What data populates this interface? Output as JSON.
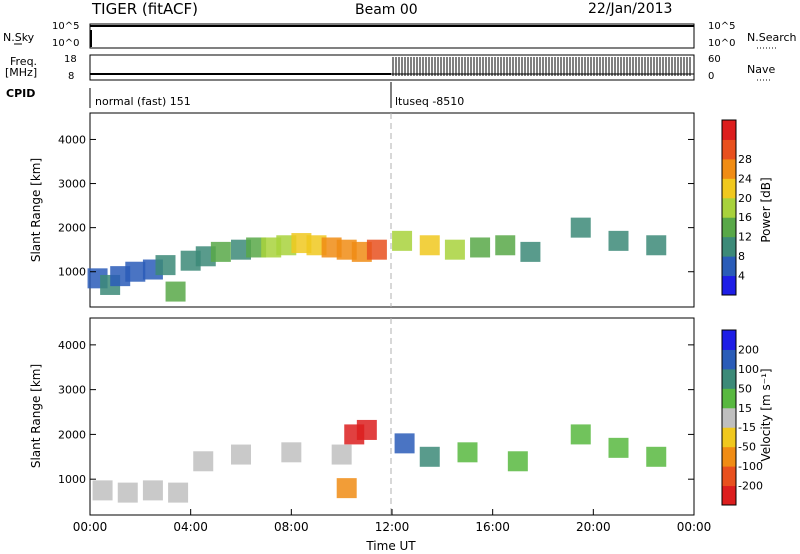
{
  "header": {
    "title": "TIGER (fitACF)",
    "beam": "Beam 00",
    "date": "22/Jan/2013"
  },
  "top_strip": {
    "left_label": "N.Sky",
    "right_label": "N.Search",
    "left_ticks": [
      "10^5",
      "10^0"
    ],
    "right_ticks": [
      "10^5",
      "10^0"
    ]
  },
  "freq_strip": {
    "left_label_1": "Freq.",
    "left_label_2": "[MHz]",
    "right_label": "Nave",
    "left_ticks": [
      "18",
      "8"
    ],
    "right_ticks": [
      "60",
      "0"
    ]
  },
  "cpid": {
    "label": "CPID",
    "mode_1": "normal (fast) 151",
    "mode_2": "ltuseq -8510"
  },
  "colors": {
    "background": "#ffffff",
    "dashed_marker": "#b0b0b0",
    "gs_gray": "#bfbfbf"
  },
  "chart_data": [
    {
      "type": "heatmap",
      "panel": "power",
      "ylabel": "Slant Range [km]",
      "yticks": [
        "1000",
        "2000",
        "3000",
        "4000"
      ],
      "ylim": [
        200,
        4600
      ],
      "xlim": [
        0,
        24
      ],
      "colorbar_label": "Power [dB]",
      "colorbar_ticks": [
        "4",
        "8",
        "12",
        "16",
        "20",
        "24",
        "28"
      ],
      "colorbar_colors": [
        "#1e1ee6",
        "#2a5cb8",
        "#3c8a78",
        "#58a848",
        "#a8d23c",
        "#f0c81e",
        "#f08c14",
        "#e8501e",
        "#dc1e1e"
      ],
      "cells": [
        {
          "t": 0.3,
          "r": 850,
          "v": 6
        },
        {
          "t": 0.8,
          "r": 700,
          "v": 8
        },
        {
          "t": 1.2,
          "r": 900,
          "v": 5
        },
        {
          "t": 1.8,
          "r": 1000,
          "v": 7
        },
        {
          "t": 2.5,
          "r": 1050,
          "v": 6
        },
        {
          "t": 3.0,
          "r": 1150,
          "v": 8
        },
        {
          "t": 3.4,
          "r": 550,
          "v": 14
        },
        {
          "t": 4.0,
          "r": 1250,
          "v": 9
        },
        {
          "t": 4.6,
          "r": 1350,
          "v": 8
        },
        {
          "t": 5.2,
          "r": 1450,
          "v": 12
        },
        {
          "t": 6.0,
          "r": 1500,
          "v": 10
        },
        {
          "t": 6.6,
          "r": 1550,
          "v": 14
        },
        {
          "t": 7.2,
          "r": 1550,
          "v": 16
        },
        {
          "t": 7.8,
          "r": 1600,
          "v": 18
        },
        {
          "t": 8.4,
          "r": 1650,
          "v": 20
        },
        {
          "t": 9.0,
          "r": 1600,
          "v": 22
        },
        {
          "t": 9.6,
          "r": 1550,
          "v": 24
        },
        {
          "t": 10.2,
          "r": 1500,
          "v": 26
        },
        {
          "t": 10.8,
          "r": 1450,
          "v": 24
        },
        {
          "t": 11.4,
          "r": 1500,
          "v": 28
        },
        {
          "t": 12.4,
          "r": 1700,
          "v": 18
        },
        {
          "t": 13.5,
          "r": 1600,
          "v": 20
        },
        {
          "t": 14.5,
          "r": 1500,
          "v": 16
        },
        {
          "t": 15.5,
          "r": 1550,
          "v": 14
        },
        {
          "t": 16.5,
          "r": 1600,
          "v": 12
        },
        {
          "t": 17.5,
          "r": 1450,
          "v": 10
        },
        {
          "t": 19.5,
          "r": 2000,
          "v": 8
        },
        {
          "t": 21.0,
          "r": 1700,
          "v": 10
        },
        {
          "t": 22.5,
          "r": 1600,
          "v": 8
        }
      ]
    },
    {
      "type": "heatmap",
      "panel": "velocity",
      "ylabel": "Slant Range [km]",
      "xlabel": "Time UT",
      "xticks": [
        "00:00",
        "04:00",
        "08:00",
        "12:00",
        "16:00",
        "20:00",
        "00:00"
      ],
      "yticks": [
        "1000",
        "2000",
        "3000",
        "4000"
      ],
      "ylim": [
        200,
        4600
      ],
      "xlim": [
        0,
        24
      ],
      "colorbar_label": "Velocity [m s⁻¹]",
      "colorbar_ticks": [
        "200",
        "100",
        "50",
        "15",
        "-15",
        "-50",
        "-100",
        "-200"
      ],
      "colorbar_colors": [
        "#1e1ee6",
        "#2a5cb8",
        "#3c8a78",
        "#58b840",
        "#bfbfbf",
        "#f0c81e",
        "#f08c14",
        "#e8501e",
        "#dc1e1e"
      ],
      "cells": [
        {
          "t": 0.5,
          "r": 750,
          "v": 0
        },
        {
          "t": 1.5,
          "r": 700,
          "v": 0
        },
        {
          "t": 2.5,
          "r": 750,
          "v": 0
        },
        {
          "t": 3.5,
          "r": 700,
          "v": 0
        },
        {
          "t": 4.5,
          "r": 1400,
          "v": 0
        },
        {
          "t": 6.0,
          "r": 1550,
          "v": 0
        },
        {
          "t": 8.0,
          "r": 1600,
          "v": 0
        },
        {
          "t": 10.0,
          "r": 1550,
          "v": 0
        },
        {
          "t": 10.5,
          "r": 2000,
          "v": -200
        },
        {
          "t": 11.0,
          "r": 2100,
          "v": -150
        },
        {
          "t": 10.2,
          "r": 800,
          "v": -60
        },
        {
          "t": 12.5,
          "r": 1800,
          "v": 120
        },
        {
          "t": 13.5,
          "r": 1500,
          "v": 40
        },
        {
          "t": 15.0,
          "r": 1600,
          "v": 30
        },
        {
          "t": 17.0,
          "r": 1400,
          "v": 20
        },
        {
          "t": 19.5,
          "r": 2000,
          "v": 25
        },
        {
          "t": 21.0,
          "r": 1700,
          "v": 20
        },
        {
          "t": 22.5,
          "r": 1500,
          "v": 18
        }
      ]
    }
  ]
}
